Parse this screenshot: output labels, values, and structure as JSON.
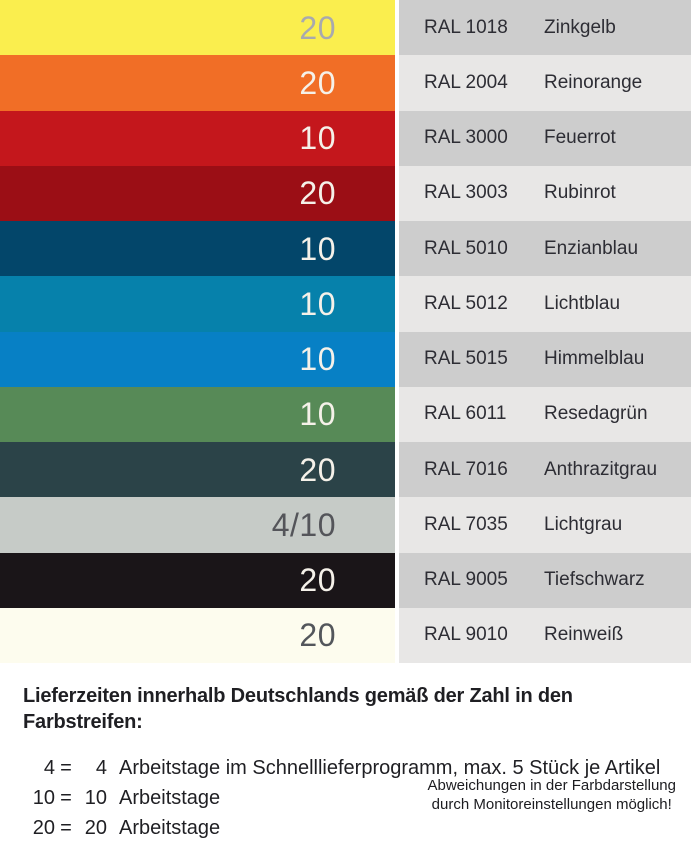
{
  "rows": [
    {
      "code": "RAL 1018",
      "name": "Zinkgelb",
      "days": "20",
      "stripe_color": "#FAEE4E",
      "days_color": "#A8A9AE",
      "panel_color": "#CDCDCD"
    },
    {
      "code": "RAL 2004",
      "name": "Reinorange",
      "days": "20",
      "stripe_color": "#F16E26",
      "days_color": "#F5F1E9",
      "panel_color": "#E8E7E6"
    },
    {
      "code": "RAL 3000",
      "name": "Feuerrot",
      "days": "10",
      "stripe_color": "#C4171C",
      "days_color": "#F5F1E9",
      "panel_color": "#CDCDCD"
    },
    {
      "code": "RAL 3003",
      "name": "Rubinrot",
      "days": "20",
      "stripe_color": "#9B0E15",
      "days_color": "#F5F1E9",
      "panel_color": "#E8E7E6"
    },
    {
      "code": "RAL 5010",
      "name": "Enzianblau",
      "days": "10",
      "stripe_color": "#03466A",
      "days_color": "#F5F1E9",
      "panel_color": "#CDCDCD"
    },
    {
      "code": "RAL 5012",
      "name": "Lichtblau",
      "days": "10",
      "stripe_color": "#0681AB",
      "days_color": "#F5F1E9",
      "panel_color": "#E8E7E6"
    },
    {
      "code": "RAL 5015",
      "name": "Himmelblau",
      "days": "10",
      "stripe_color": "#0780C5",
      "days_color": "#F5F1E9",
      "panel_color": "#CDCDCD"
    },
    {
      "code": "RAL 6011",
      "name": "Resedagrün",
      "days": "10",
      "stripe_color": "#578A57",
      "days_color": "#F5F1E9",
      "panel_color": "#E8E7E6"
    },
    {
      "code": "RAL 7016",
      "name": "Anthrazitgrau",
      "days": "20",
      "stripe_color": "#2B4348",
      "days_color": "#F5F1E9",
      "panel_color": "#CDCDCD"
    },
    {
      "code": "RAL 7035",
      "name": "Lichtgrau",
      "days": "4/10",
      "stripe_color": "#C6CBC7",
      "days_color": "#54555A",
      "panel_color": "#E8E7E6"
    },
    {
      "code": "RAL 9005",
      "name": "Tiefschwarz",
      "days": "20",
      "stripe_color": "#1A1518",
      "days_color": "#F5F1E9",
      "panel_color": "#CDCDCD"
    },
    {
      "code": "RAL 9010",
      "name": "Reinweiß",
      "days": "20",
      "stripe_color": "#FDFCEE",
      "days_color": "#53565B",
      "panel_color": "#E8E7E6"
    }
  ],
  "footer": {
    "heading": "Lieferzeiten innerhalb Deutschlands gemäß der Zahl in den Farbstreifen:",
    "legend": [
      {
        "key": "4",
        "eq": "=",
        "value": "4",
        "text": "Arbeitstage im Schnelllieferprogramm, max. 5 Stück je Artikel"
      },
      {
        "key": "10",
        "eq": "=",
        "value": "10",
        "text": "Arbeitstage"
      },
      {
        "key": "20",
        "eq": "=",
        "value": "20",
        "text": "Arbeitstage"
      }
    ],
    "note_line1": "Abweichungen in der Farbdarstellung",
    "note_line2": "durch Monitoreinstellungen möglich!"
  }
}
